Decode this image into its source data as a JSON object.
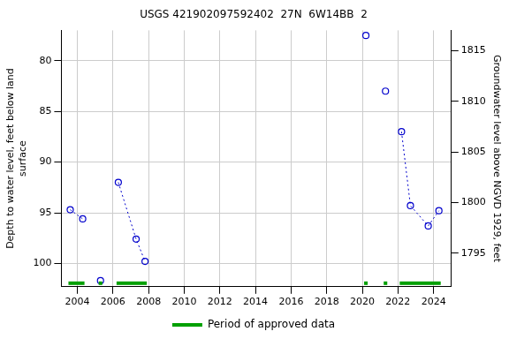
{
  "chart_data": {
    "type": "scatter",
    "title": "USGS 421902097592402  27N  6W14BB  2",
    "y_label": [
      "Depth to water level, feet below land",
      "surface"
    ],
    "y2_label": "Groundwater level above NGVD 1929, feet",
    "xlim": [
      2003.1,
      2025.0
    ],
    "xticks": [
      2004,
      2006,
      2008,
      2010,
      2012,
      2014,
      2016,
      2018,
      2020,
      2022,
      2024
    ],
    "ylim": [
      102.3,
      77
    ],
    "yticks": [
      80,
      85,
      90,
      95,
      100
    ],
    "y2lim": [
      1791.7,
      1817
    ],
    "y2ticks": [
      1795,
      1800,
      1805,
      1810,
      1815
    ],
    "grid": true,
    "legend": "bottom",
    "series": [
      {
        "color": "#0000cc",
        "marker": "circle",
        "line_style": "dotted",
        "x": [
          2003.6,
          2004.3
        ],
        "values": [
          94.7,
          95.6
        ]
      },
      {
        "color": "#0000cc",
        "marker": "circle",
        "line_style": "dotted",
        "x": [
          2005.3
        ],
        "values": [
          101.7
        ]
      },
      {
        "color": "#0000cc",
        "marker": "circle",
        "line_style": "dotted",
        "x": [
          2006.3,
          2007.3,
          2007.8
        ],
        "values": [
          92.0,
          97.6,
          99.8
        ]
      },
      {
        "color": "#0000cc",
        "marker": "circle",
        "line_style": "dotted",
        "x": [
          2020.2
        ],
        "values": [
          77.5
        ]
      },
      {
        "color": "#0000cc",
        "marker": "circle",
        "line_style": "dotted",
        "x": [
          2021.3
        ],
        "values": [
          83.0
        ]
      },
      {
        "color": "#0000cc",
        "marker": "circle",
        "line_style": "dotted",
        "x": [
          2022.2,
          2022.7,
          2023.7,
          2024.3
        ],
        "values": [
          87.0,
          94.3,
          96.3,
          94.8
        ]
      }
    ],
    "approved_periods": {
      "name": "Period of approved data",
      "color": "#00a000",
      "ranges": [
        [
          2003.5,
          2004.4
        ],
        [
          2005.2,
          2005.4
        ],
        [
          2006.2,
          2007.9
        ],
        [
          2020.1,
          2020.3
        ],
        [
          2021.2,
          2021.4
        ],
        [
          2022.1,
          2024.4
        ]
      ]
    }
  }
}
